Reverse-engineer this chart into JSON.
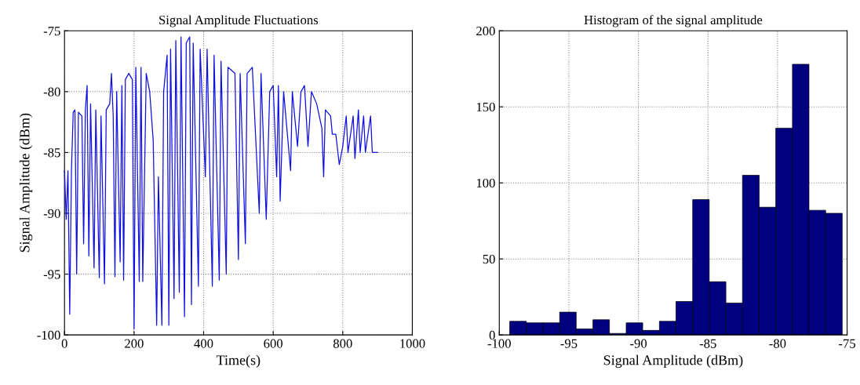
{
  "chart_data": [
    {
      "type": "line",
      "title": "Signal Amplitude Fluctuations",
      "xlabel": "Time(s)",
      "ylabel": "Signal Amplitude (dBm)",
      "xlim": [
        0,
        1000
      ],
      "ylim": [
        -100,
        -75
      ],
      "xticks": [
        0,
        200,
        400,
        600,
        800,
        1000
      ],
      "yticks": [
        -100,
        -95,
        -90,
        -85,
        -80,
        -75
      ],
      "grid": true,
      "line_style": "solid",
      "series": [
        {
          "color": "#1010e0",
          "x": [
            0,
            5,
            10,
            15,
            20,
            25,
            30,
            35,
            40,
            50,
            55,
            60,
            65,
            70,
            75,
            85,
            90,
            100,
            105,
            115,
            120,
            130,
            135,
            140,
            145,
            150,
            160,
            165,
            170,
            175,
            185,
            195,
            200,
            205,
            215,
            220,
            225,
            235,
            245,
            255,
            265,
            270,
            280,
            285,
            295,
            300,
            305,
            315,
            320,
            330,
            335,
            345,
            350,
            360,
            365,
            370,
            385,
            390,
            405,
            410,
            425,
            430,
            445,
            450,
            465,
            470,
            490,
            500,
            505,
            520,
            525,
            540,
            560,
            565,
            580,
            590,
            600,
            610,
            615,
            620,
            630,
            650,
            655,
            670,
            680,
            690,
            700,
            710,
            725,
            740,
            745,
            750,
            765,
            770,
            780,
            790,
            800,
            810,
            815,
            830,
            835,
            845,
            850,
            860,
            865,
            880,
            885,
            900
          ],
          "values": [
            -86.5,
            -90.5,
            -86.5,
            -98.3,
            -86.5,
            -81.7,
            -81.5,
            -95,
            -81.7,
            -82,
            -92.5,
            -81.5,
            -79.5,
            -93.5,
            -81,
            -94.5,
            -81.5,
            -95.3,
            -82,
            -95.8,
            -81.5,
            -81,
            -78.5,
            -82,
            -95.2,
            -80,
            -94,
            -79.5,
            -95.5,
            -79,
            -78.5,
            -79,
            -99.5,
            -78,
            -95.6,
            -78,
            -95.6,
            -78.5,
            -80,
            -84,
            -99.2,
            -87,
            -99.2,
            -80,
            -77,
            -99.2,
            -76.5,
            -97,
            -75.8,
            -96.5,
            -75.5,
            -98.5,
            -76,
            -75.5,
            -97.5,
            -76,
            -96,
            -76.5,
            -87,
            -76.5,
            -96,
            -77,
            -95.5,
            -77.5,
            -95,
            -78,
            -78.5,
            -93.8,
            -78.5,
            -92.5,
            -78.5,
            -78,
            -90,
            -78.5,
            -90.5,
            -80,
            -79.5,
            -87,
            -79.5,
            -89,
            -80,
            -86.5,
            -80,
            -84.5,
            -80,
            -79.5,
            -84.5,
            -80,
            -81,
            -83,
            -87,
            -81.5,
            -82,
            -83.5,
            -83.5,
            -86,
            -84.5,
            -82,
            -85,
            -82,
            -85.5,
            -81.5,
            -85,
            -82,
            -85,
            -82,
            -85,
            -85
          ]
        }
      ]
    },
    {
      "type": "histogram",
      "title": "Histogram of the signal amplitude",
      "xlabel": "Signal Amplitude (dBm)",
      "xlim": [
        -100,
        -75
      ],
      "ylim": [
        0,
        200
      ],
      "xticks": [
        -100,
        -95,
        -90,
        -85,
        -80,
        -75
      ],
      "yticks": [
        0,
        50,
        100,
        150,
        200
      ],
      "grid": true,
      "color": "#000080",
      "bins": [
        -99.25,
        -98.05,
        -96.86,
        -95.66,
        -94.47,
        -93.27,
        -92.08,
        -90.88,
        -89.69,
        -88.49,
        -87.3,
        -86.1,
        -84.91,
        -83.71,
        -82.52,
        -81.32,
        -80.13,
        -78.93,
        -77.74,
        -76.54,
        -75.35
      ],
      "values": [
        9,
        8,
        8,
        15,
        4,
        10,
        1,
        8,
        3,
        9,
        22,
        89,
        35,
        21,
        105,
        84,
        136,
        178,
        82,
        80
      ]
    }
  ]
}
